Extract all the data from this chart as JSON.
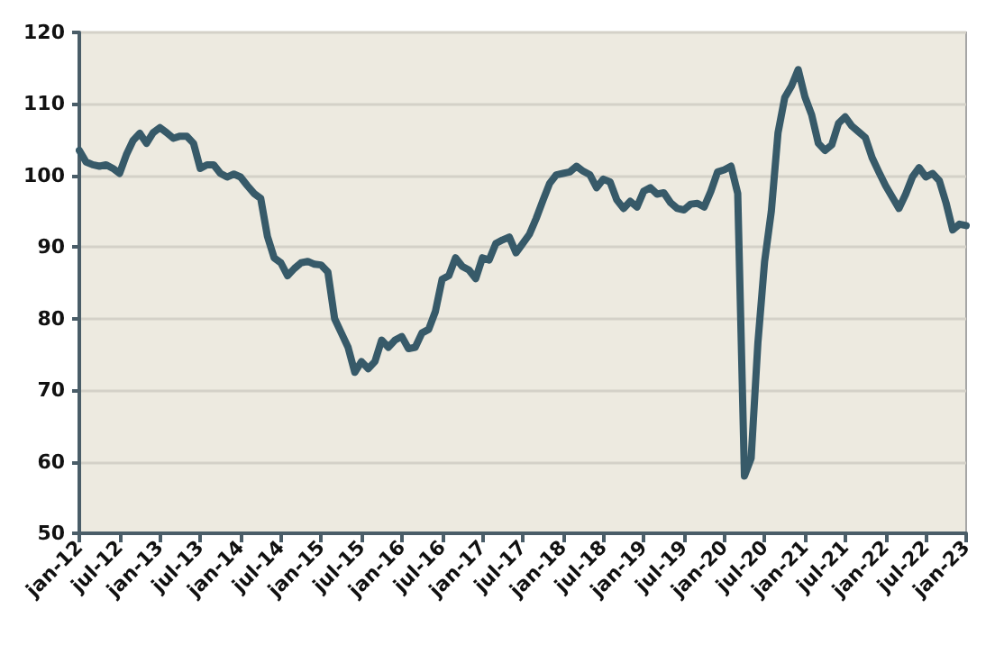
{
  "chart_data": {
    "type": "line",
    "categories": [
      "jan-12",
      null,
      null,
      null,
      null,
      null,
      "jul-12",
      null,
      null,
      null,
      null,
      null,
      "jan-13",
      null,
      null,
      null,
      null,
      null,
      "jul-13",
      null,
      null,
      null,
      null,
      null,
      "jan-14",
      null,
      null,
      null,
      null,
      null,
      "jul-14",
      null,
      null,
      null,
      null,
      null,
      "jan-15",
      null,
      null,
      null,
      null,
      null,
      "jul-15",
      null,
      null,
      null,
      null,
      null,
      "jan-16",
      null,
      null,
      null,
      null,
      null,
      "jul-16",
      null,
      null,
      null,
      null,
      null,
      "jan-17",
      null,
      null,
      null,
      null,
      null,
      "jul-17",
      null,
      null,
      null,
      null,
      null,
      "jan-18",
      null,
      null,
      null,
      null,
      null,
      "jul-18",
      null,
      null,
      null,
      null,
      null,
      "jan-19",
      null,
      null,
      null,
      null,
      null,
      "jul-19",
      null,
      null,
      null,
      null,
      null,
      "jan-20",
      null,
      null,
      null,
      null,
      null,
      "jul-20",
      null,
      null,
      null,
      null,
      null,
      "jan-21",
      null,
      null,
      null,
      null,
      null,
      "jul-21",
      null,
      null,
      null,
      null,
      null,
      "jan-22",
      null,
      null,
      null,
      null,
      null,
      "jul-22",
      null,
      null,
      null,
      null,
      null,
      "jan-23"
    ],
    "series": [
      {
        "color": "#375a69",
        "values": [
          103.5,
          101.9,
          101.5,
          101.3,
          101.5,
          101,
          100.3,
          102.9,
          104.9,
          105.9,
          104.5,
          106,
          106.7,
          106,
          105.2,
          105.5,
          105.5,
          104.5,
          101,
          101.5,
          101.5,
          100.3,
          99.8,
          100.2,
          99.8,
          98.6,
          97.5,
          96.8,
          91.5,
          88.5,
          87.8,
          86,
          87,
          87.8,
          88,
          87.6,
          87.5,
          86.5,
          80,
          78,
          76,
          72.5,
          74,
          73,
          74,
          77,
          76,
          77,
          77.5,
          75.8,
          76,
          78,
          78.5,
          81,
          85.5,
          86,
          88.5,
          87.3,
          86.8,
          85.6,
          88.5,
          88.2,
          90.5,
          91,
          91.4,
          89.2,
          90.5,
          91.8,
          94,
          96.5,
          98.9,
          100.1,
          100.3,
          100.5,
          101.3,
          100.6,
          100.1,
          98.3,
          99.5,
          99.1,
          96.6,
          95.4,
          96.4,
          95.6,
          97.8,
          98.3,
          97.4,
          97.6,
          96.2,
          95.4,
          95.2,
          96,
          96.1,
          95.6,
          97.8,
          100.5,
          100.8,
          101.3,
          97.5,
          58,
          60.5,
          76.6,
          88,
          95,
          106,
          110.9,
          112.5,
          114.8,
          111,
          108.5,
          104.5,
          103.5,
          104.3,
          107.3,
          108.2,
          106.9,
          106.1,
          105.3,
          102.5,
          100.5,
          98.6,
          97,
          95.4,
          97.4,
          99.8,
          101.1,
          99.8,
          100.3,
          99.3,
          96.2,
          92.4,
          93.2,
          93
        ]
      }
    ],
    "ylim": [
      50,
      120
    ],
    "yticks": [
      50,
      60,
      70,
      80,
      90,
      100,
      110,
      120
    ],
    "grid": "y",
    "marker": "none",
    "line_style": "solid"
  }
}
